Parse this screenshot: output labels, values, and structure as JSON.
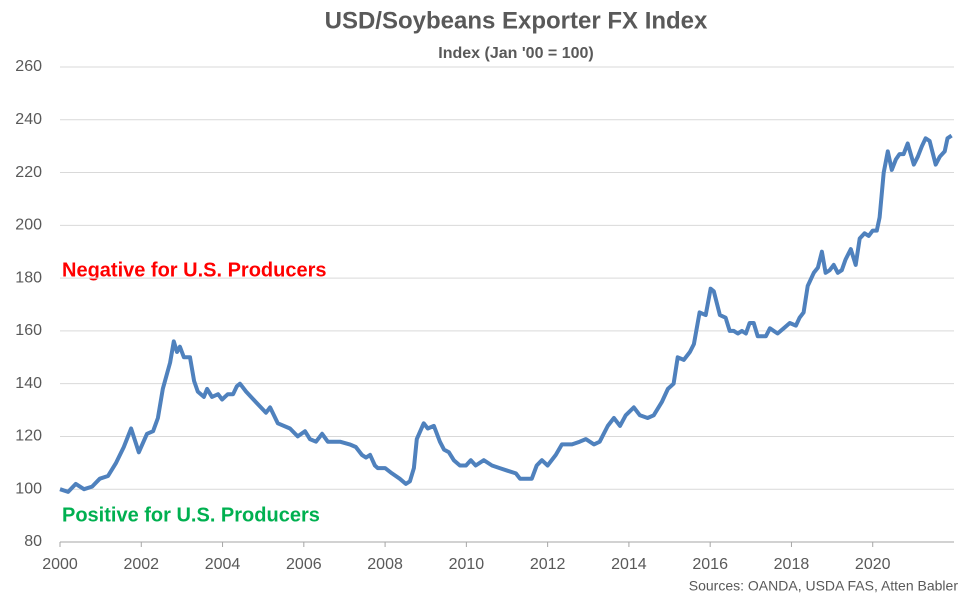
{
  "chart_data": {
    "type": "line",
    "title": "USD/Soybeans Exporter FX Index",
    "subtitle": "Index (Jan '00 = 100)",
    "annotations": [
      {
        "text": "Negative for U.S. Producers",
        "color": "#ff0000"
      },
      {
        "text": "Positive for U.S. Producers",
        "color": "#00b050"
      }
    ],
    "source": "Sources: OANDA, USDA FAS, Atten Babler",
    "xlim": [
      2000,
      2022
    ],
    "xticks": [
      2000,
      2002,
      2004,
      2006,
      2008,
      2010,
      2012,
      2014,
      2016,
      2018,
      2020
    ],
    "ylim": [
      80,
      260
    ],
    "yticks": [
      80,
      100,
      120,
      140,
      160,
      180,
      200,
      220,
      240,
      260
    ],
    "grid": true,
    "series": [
      {
        "name": "USD/Soybeans Exporter FX Index",
        "color": "#4f81bd",
        "x": [
          2000.0,
          2000.2,
          2000.39,
          2000.59,
          2000.79,
          2000.98,
          2001.18,
          2001.38,
          2001.57,
          2001.75,
          2001.94,
          2002.14,
          2002.29,
          2002.41,
          2002.53,
          2002.71,
          2002.8,
          2002.88,
          2002.95,
          2003.05,
          2003.2,
          2003.3,
          2003.39,
          2003.54,
          2003.62,
          2003.74,
          2003.89,
          2003.99,
          2004.13,
          2004.26,
          2004.35,
          2004.43,
          2004.58,
          2004.82,
          2005.07,
          2005.17,
          2005.36,
          2005.66,
          2005.85,
          2006.03,
          2006.15,
          2006.3,
          2006.45,
          2006.59,
          2006.89,
          2007.13,
          2007.28,
          2007.43,
          2007.53,
          2007.63,
          2007.75,
          2007.82,
          2008.0,
          2008.17,
          2008.36,
          2008.51,
          2008.61,
          2008.71,
          2008.78,
          2008.95,
          2009.05,
          2009.2,
          2009.35,
          2009.45,
          2009.57,
          2009.69,
          2009.84,
          2009.99,
          2010.11,
          2010.23,
          2010.43,
          2010.63,
          2010.82,
          2011.02,
          2011.22,
          2011.32,
          2011.51,
          2011.61,
          2011.73,
          2011.86,
          2012.0,
          2012.2,
          2012.35,
          2012.45,
          2012.6,
          2012.79,
          2012.94,
          2013.14,
          2013.28,
          2013.48,
          2013.63,
          2013.78,
          2013.92,
          2014.12,
          2014.27,
          2014.46,
          2014.61,
          2014.81,
          2014.96,
          2015.1,
          2015.2,
          2015.35,
          2015.5,
          2015.6,
          2015.74,
          2015.89,
          2016.01,
          2016.09,
          2016.24,
          2016.38,
          2016.48,
          2016.58,
          2016.68,
          2016.78,
          2016.88,
          2016.97,
          2017.07,
          2017.17,
          2017.37,
          2017.47,
          2017.66,
          2017.81,
          2017.96,
          2018.11,
          2018.2,
          2018.3,
          2018.4,
          2018.55,
          2018.65,
          2018.75,
          2018.84,
          2018.94,
          2019.04,
          2019.14,
          2019.24,
          2019.33,
          2019.46,
          2019.58,
          2019.68,
          2019.8,
          2019.9,
          2020.0,
          2020.1,
          2020.17,
          2020.27,
          2020.37,
          2020.47,
          2020.57,
          2020.66,
          2020.76,
          2020.86,
          2021.01,
          2021.11,
          2021.21,
          2021.3,
          2021.4,
          2021.55,
          2021.65,
          2021.77,
          2021.84,
          2021.94
        ],
        "values": [
          100,
          99,
          102,
          100,
          101,
          104,
          105,
          110,
          116,
          123,
          114,
          121,
          122,
          127,
          138,
          148,
          156,
          152,
          154,
          150,
          150,
          141,
          137,
          135,
          138,
          135,
          136,
          134,
          136,
          136,
          139,
          140,
          137,
          133,
          129,
          131,
          125,
          123,
          120,
          122,
          119,
          118,
          121,
          118,
          118,
          117,
          116,
          113,
          112,
          113,
          109,
          108,
          108,
          106,
          104,
          102,
          103,
          108,
          119,
          125,
          123,
          124,
          118,
          115,
          114,
          111,
          109,
          109,
          111,
          109,
          111,
          109,
          108,
          107,
          106,
          104,
          104,
          104,
          109,
          111,
          109,
          113,
          117,
          117,
          117,
          118,
          119,
          117,
          118,
          124,
          127,
          124,
          128,
          131,
          128,
          127,
          128,
          133,
          138,
          140,
          150,
          149,
          152,
          155,
          167,
          166,
          176,
          175,
          166,
          165,
          160,
          160,
          159,
          160,
          159,
          163,
          163,
          158,
          158,
          161,
          159,
          161,
          163,
          162,
          165,
          167,
          177,
          182,
          184,
          190,
          182,
          183,
          185,
          182,
          183,
          187,
          191,
          185,
          195,
          197,
          196,
          198,
          198,
          203,
          220,
          228,
          221,
          225,
          227,
          227,
          231,
          223,
          226,
          230,
          233,
          232,
          223,
          226,
          228,
          233,
          234
        ]
      }
    ]
  }
}
